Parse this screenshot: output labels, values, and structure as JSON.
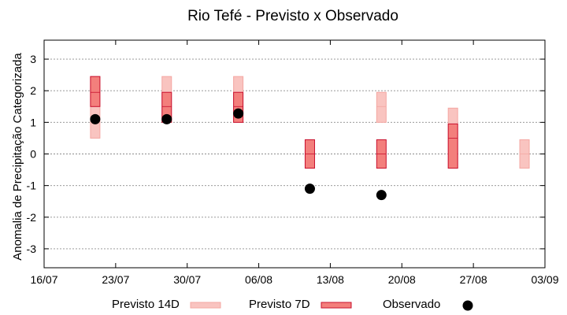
{
  "chart_data": {
    "type": "floating-bar",
    "title": "Rio Tefé - Previsto x Observado",
    "ylabel": "Anomalia de Precipitação Categorizada",
    "xlabel": "",
    "xlim": [
      "2025-07-16",
      "2025-09-03"
    ],
    "ylim": [
      -3.6,
      3.6
    ],
    "x_ticks": [
      "16/07",
      "23/07",
      "30/07",
      "06/08",
      "13/08",
      "20/08",
      "27/08",
      "03/09"
    ],
    "y_ticks": [
      3,
      2,
      1,
      0,
      -1,
      -2,
      -3
    ],
    "y_tick_labels": [
      "3",
      "2",
      "1",
      "0",
      "-1",
      "-2",
      "-3"
    ],
    "grid": true,
    "legend_position": "bottom",
    "colors": {
      "previsto_14d_fill": "#f9c4c0",
      "previsto_14d_edge": "#f4a7a2",
      "previsto_7d_fill": "#f37f7c",
      "previsto_7d_edge": "#c8102e",
      "observado": "#000000",
      "grid": "#8c8c8c"
    },
    "series": [
      {
        "name": "Previsto 14D",
        "boxes": [
          {
            "x": "2025-07-21",
            "low": 0.5,
            "mid": 1.5,
            "high": 2.45
          },
          {
            "x": "2025-07-28",
            "low": 1.0,
            "mid": 1.5,
            "high": 2.45
          },
          {
            "x": "2025-08-04",
            "low": 1.0,
            "mid": 1.5,
            "high": 2.45
          },
          {
            "x": "2025-08-11",
            "low": -0.45,
            "mid": 0.0,
            "high": 0.45
          },
          {
            "x": "2025-08-18",
            "low": 1.0,
            "mid": 1.5,
            "high": 1.95
          },
          {
            "x": "2025-08-25",
            "low": -0.45,
            "mid": 0.5,
            "high": 1.45
          },
          {
            "x": "2025-09-01",
            "low": -0.45,
            "mid": 0.0,
            "high": 0.45
          }
        ]
      },
      {
        "name": "Previsto 7D",
        "boxes": [
          {
            "x": "2025-07-21",
            "low": 1.5,
            "mid": 1.95,
            "high": 2.45
          },
          {
            "x": "2025-07-28",
            "low": 1.0,
            "mid": 1.5,
            "high": 1.95
          },
          {
            "x": "2025-08-04",
            "low": 1.0,
            "mid": 1.5,
            "high": 1.95
          },
          {
            "x": "2025-08-11",
            "low": -0.45,
            "mid": 0.0,
            "high": 0.45
          },
          {
            "x": "2025-08-18",
            "low": -0.45,
            "mid": 0.0,
            "high": 0.45
          },
          {
            "x": "2025-08-25",
            "low": -0.45,
            "mid": 0.5,
            "high": 0.95
          }
        ]
      },
      {
        "name": "Observado",
        "points": [
          {
            "x": "2025-07-21",
            "y": 1.1
          },
          {
            "x": "2025-07-28",
            "y": 1.1
          },
          {
            "x": "2025-08-04",
            "y": 1.28
          },
          {
            "x": "2025-08-11",
            "y": -1.1
          },
          {
            "x": "2025-08-18",
            "y": -1.3
          }
        ]
      }
    ]
  }
}
